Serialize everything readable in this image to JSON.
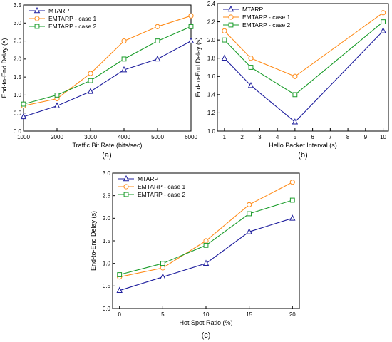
{
  "colors": {
    "series": [
      "#1f1f9e",
      "#ff8c1a",
      "#1a9c2a"
    ],
    "axis": "#000000",
    "background": "#ffffff"
  },
  "chart_data": [
    {
      "type": "line",
      "panel_label": "(a)",
      "xlabel": "Traffic Bit Rate (bits/sec)",
      "ylabel": "End-to-End Delay (s)",
      "xlim": [
        1000,
        6000
      ],
      "ylim": [
        0.0,
        3.5
      ],
      "xticks": [
        "1000",
        "2000",
        "3000",
        "4000",
        "5000",
        "6000"
      ],
      "yticks": [
        "0.0",
        "0.5",
        "1.0",
        "1.5",
        "2.0",
        "2.5",
        "3.0",
        "3.5"
      ],
      "x": [
        1000,
        2000,
        3000,
        4000,
        5000,
        6000
      ],
      "grid": false,
      "legend_position": "top-left",
      "series": [
        {
          "name": "MTARP",
          "marker": "triangle",
          "values": [
            0.4,
            0.7,
            1.1,
            1.7,
            2.0,
            2.5
          ]
        },
        {
          "name": "EMTARP - case 1",
          "marker": "circle",
          "values": [
            0.7,
            0.9,
            1.6,
            2.5,
            2.9,
            3.2
          ]
        },
        {
          "name": "EMTARP - case 2",
          "marker": "square",
          "values": [
            0.75,
            1.0,
            1.4,
            2.0,
            2.5,
            2.9
          ]
        }
      ]
    },
    {
      "type": "line",
      "panel_label": "(b)",
      "xlabel": "Hello Packet Interval (s)",
      "ylabel": "End-to-End Delay (s)",
      "xlim": [
        0.6,
        10.3
      ],
      "ylim": [
        1.0,
        2.4
      ],
      "xticks": [
        "1",
        "2",
        "3",
        "4",
        "5",
        "6",
        "7",
        "8",
        "9",
        "10"
      ],
      "yticks": [
        "1.0",
        "1.2",
        "1.4",
        "1.6",
        "1.8",
        "2.0",
        "2.2",
        "2.4"
      ],
      "x": [
        1,
        2.5,
        5,
        10
      ],
      "grid": false,
      "legend_position": "top-left",
      "series": [
        {
          "name": "MTARP",
          "marker": "triangle",
          "values": [
            1.8,
            1.5,
            1.1,
            2.1
          ]
        },
        {
          "name": "EMTARP - case 1",
          "marker": "circle",
          "values": [
            2.1,
            1.8,
            1.6,
            2.3
          ]
        },
        {
          "name": "EMTARP - case 2",
          "marker": "square",
          "values": [
            2.0,
            1.7,
            1.4,
            2.2
          ]
        }
      ]
    },
    {
      "type": "line",
      "panel_label": "(c)",
      "xlabel": "Hot Spot Ratio (%)",
      "ylabel": "End-to-End Delay (s)",
      "xlim": [
        -0.8,
        20.8
      ],
      "ylim": [
        0.0,
        3.0
      ],
      "xticks": [
        "0",
        "5",
        "10",
        "15",
        "20"
      ],
      "yticks": [
        "0.0",
        "0.5",
        "1.0",
        "1.5",
        "2.0",
        "2.5",
        "3.0"
      ],
      "x": [
        0,
        5,
        10,
        15,
        20
      ],
      "grid": false,
      "legend_position": "top-left",
      "series": [
        {
          "name": "MTARP",
          "marker": "triangle",
          "values": [
            0.4,
            0.7,
            1.0,
            1.7,
            2.0
          ]
        },
        {
          "name": "EMTARP - case 1",
          "marker": "circle",
          "values": [
            0.7,
            0.9,
            1.5,
            2.3,
            2.8
          ]
        },
        {
          "name": "EMTARP - case 2",
          "marker": "square",
          "values": [
            0.75,
            1.0,
            1.4,
            2.1,
            2.4
          ]
        }
      ]
    }
  ]
}
